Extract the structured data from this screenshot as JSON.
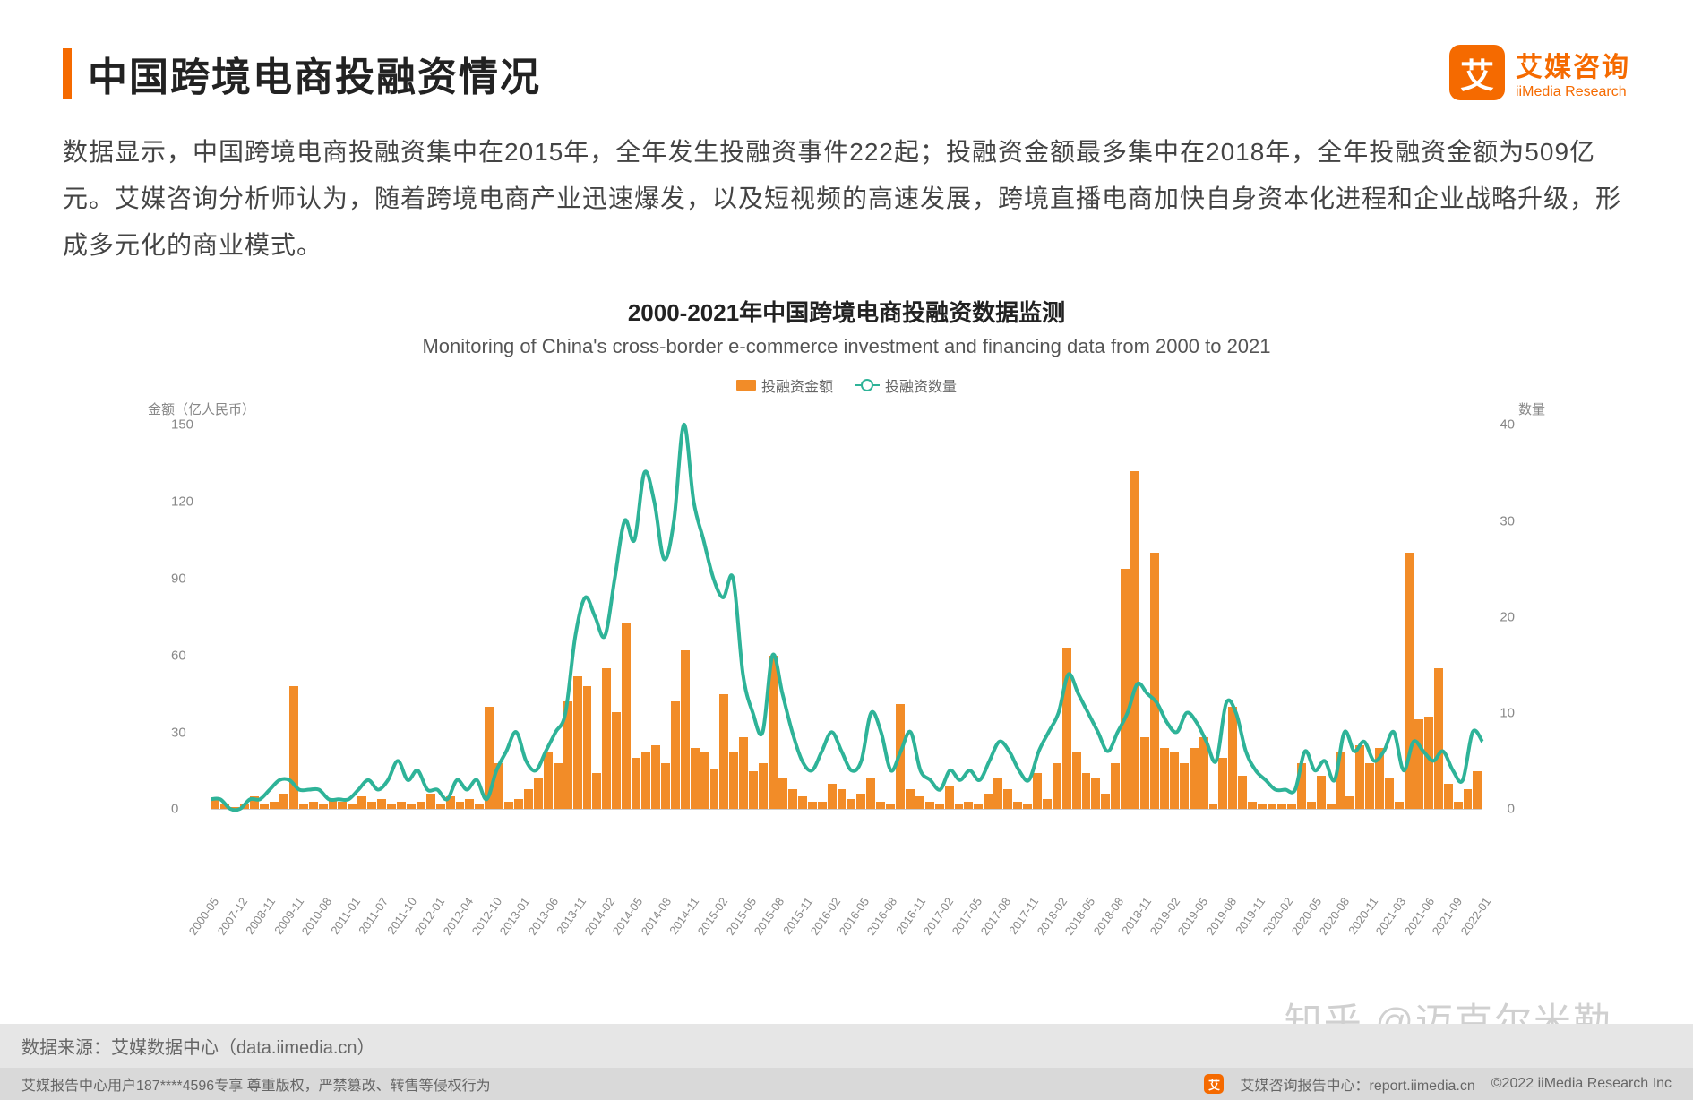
{
  "header": {
    "title": "中国跨境电商投融资情况",
    "logo_cn": "艾媒咨询",
    "logo_en": "iiMedia Research",
    "logo_glyph": "艾"
  },
  "description": "数据显示，中国跨境电商投融资集中在2015年，全年发生投融资事件222起；投融资金额最多集中在2018年，全年投融资金额为509亿元。艾媒咨询分析师认为，随着跨境电商产业迅速爆发，以及短视频的高速发展，跨境直播电商加快自身资本化进程和企业战略升级，形成多元化的商业模式。",
  "chart": {
    "type": "bar+line",
    "title_cn": "2000-2021年中国跨境电商投融资数据监测",
    "title_en": "Monitoring of China's cross-border e-commerce investment and financing data from 2000 to 2021",
    "legend_bar": "投融资金额",
    "legend_line": "投融资数量",
    "y_left_label": "金额（亿人民币）",
    "y_right_label": "数量",
    "y_left": {
      "min": 0,
      "max": 150,
      "step": 30
    },
    "y_right": {
      "min": 0,
      "max": 40,
      "step": 10
    },
    "bar_color": "#f28c28",
    "line_color": "#2eb398",
    "background_color": "#ffffff",
    "grid_color": "#eeeeee",
    "x_labels": [
      "2000-05",
      "2007-12",
      "2008-11",
      "2009-11",
      "2010-08",
      "2011-01",
      "2011-07",
      "2011-10",
      "2012-01",
      "2012-04",
      "2012-10",
      "2013-01",
      "2013-06",
      "2013-11",
      "2014-02",
      "2014-05",
      "2014-08",
      "2014-11",
      "2015-02",
      "2015-05",
      "2015-08",
      "2015-11",
      "2016-02",
      "2016-05",
      "2016-08",
      "2016-11",
      "2017-02",
      "2017-05",
      "2017-08",
      "2017-11",
      "2018-02",
      "2018-05",
      "2018-08",
      "2018-11",
      "2019-02",
      "2019-05",
      "2019-08",
      "2019-11",
      "2020-02",
      "2020-05",
      "2020-08",
      "2020-11",
      "2021-03",
      "2021-06",
      "2021-09",
      "2022-01"
    ],
    "bar_values": [
      4,
      2,
      1,
      2,
      5,
      2,
      3,
      6,
      48,
      2,
      3,
      2,
      4,
      3,
      2,
      5,
      3,
      4,
      2,
      3,
      2,
      3,
      6,
      2,
      5,
      3,
      4,
      2,
      40,
      18,
      3,
      4,
      8,
      12,
      22,
      18,
      42,
      52,
      48,
      14,
      55,
      38,
      73,
      20,
      22,
      25,
      18,
      42,
      62,
      24,
      22,
      16,
      45,
      22,
      28,
      15,
      18,
      60,
      12,
      8,
      5,
      3,
      3,
      10,
      8,
      4,
      6,
      12,
      3,
      2,
      41,
      8,
      5,
      3,
      2,
      9,
      2,
      3,
      2,
      6,
      12,
      8,
      3,
      2,
      14,
      4,
      18,
      63,
      22,
      14,
      12,
      6,
      18,
      94,
      132,
      28,
      100,
      24,
      22,
      18,
      24,
      28,
      2,
      20,
      40,
      13,
      3,
      2,
      2,
      2,
      2,
      18,
      3,
      13,
      2,
      22,
      5,
      25,
      18,
      24,
      12,
      3,
      100,
      35,
      36,
      55,
      10,
      3,
      8,
      15
    ],
    "line_values": [
      1,
      1,
      0,
      0,
      1,
      1,
      2,
      3,
      3,
      2,
      2,
      2,
      1,
      1,
      1,
      2,
      3,
      2,
      3,
      5,
      3,
      4,
      2,
      2,
      1,
      3,
      2,
      3,
      1,
      4,
      6,
      8,
      5,
      4,
      6,
      8,
      10,
      18,
      22,
      20,
      18,
      24,
      30,
      28,
      35,
      32,
      26,
      30,
      40,
      32,
      28,
      24,
      22,
      24,
      14,
      10,
      8,
      16,
      12,
      8,
      5,
      4,
      6,
      8,
      6,
      4,
      5,
      10,
      8,
      4,
      6,
      8,
      4,
      3,
      2,
      4,
      3,
      4,
      3,
      5,
      7,
      6,
      4,
      3,
      6,
      8,
      10,
      14,
      12,
      10,
      8,
      6,
      8,
      10,
      13,
      12,
      11,
      9,
      8,
      10,
      9,
      7,
      5,
      11,
      10,
      6,
      4,
      3,
      2,
      2,
      2,
      6,
      4,
      5,
      3,
      8,
      6,
      7,
      5,
      6,
      8,
      4,
      7,
      6,
      5,
      6,
      4,
      3,
      8,
      7
    ]
  },
  "footer": {
    "source": "数据来源：艾媒数据中心（data.iimedia.cn）",
    "bottom_left": "艾媒报告中心用户187****4596专享 尊重版权，严禁篡改、转售等侵权行为",
    "bottom_center": "艾媒咨询报告中心：report.iimedia.cn",
    "bottom_right": "©2022  iiMedia Research Inc",
    "watermark": "知乎 @迈克尔米勒"
  }
}
